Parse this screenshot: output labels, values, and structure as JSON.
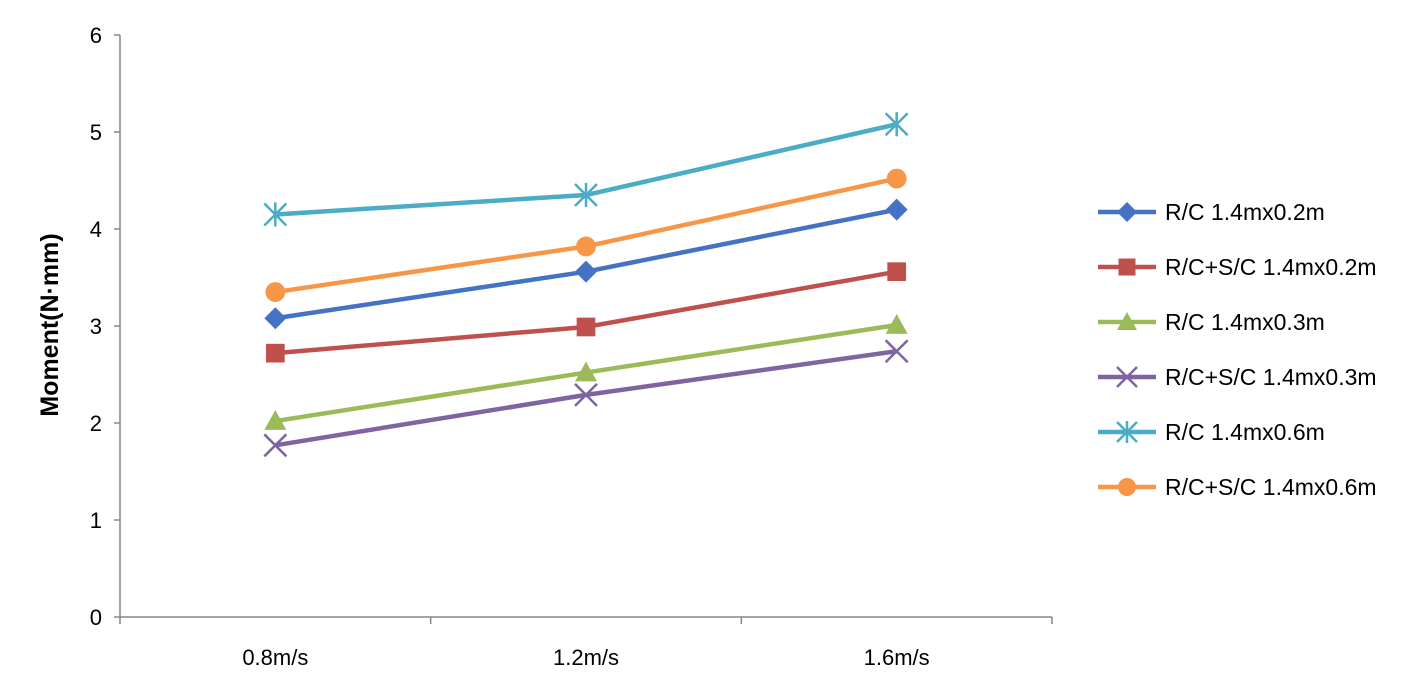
{
  "chart_data": {
    "type": "line",
    "title": "",
    "xlabel": "",
    "ylabel": "Moment(N·mm)",
    "categories": [
      "0.8m/s",
      "1.2m/s",
      "1.6m/s"
    ],
    "ylim": [
      0,
      6
    ],
    "yticks": [
      0,
      1,
      2,
      3,
      4,
      5,
      6
    ],
    "grid": false,
    "legend": "right",
    "series": [
      {
        "name": "R/C 1.4mx0.2m",
        "values": [
          3.08,
          3.56,
          4.2
        ],
        "color": "#4472C4",
        "marker": "diamond"
      },
      {
        "name": "R/C+S/C 1.4mx0.2m",
        "values": [
          2.72,
          2.99,
          3.56
        ],
        "color": "#C0504D",
        "marker": "square"
      },
      {
        "name": "R/C 1.4mx0.3m",
        "values": [
          2.02,
          2.52,
          3.01
        ],
        "color": "#9BBB59",
        "marker": "triangle"
      },
      {
        "name": "R/C+S/C 1.4mx0.3m",
        "values": [
          1.77,
          2.29,
          2.74
        ],
        "color": "#8064A2",
        "marker": "x"
      },
      {
        "name": "R/C 1.4mx0.6m",
        "values": [
          4.15,
          4.35,
          5.08
        ],
        "color": "#4BACC6",
        "marker": "star"
      },
      {
        "name": "R/C+S/C 1.4mx0.6m",
        "values": [
          3.35,
          3.82,
          4.52
        ],
        "color": "#F79646",
        "marker": "circle"
      }
    ]
  }
}
